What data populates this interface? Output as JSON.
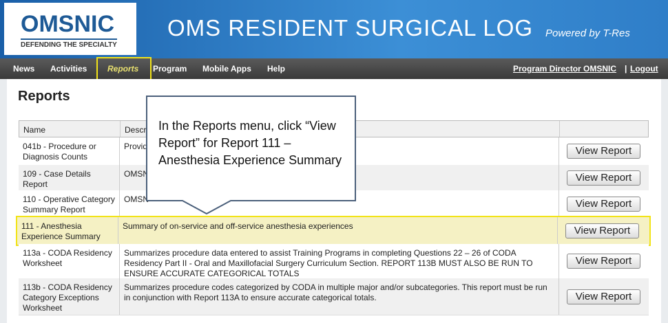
{
  "header": {
    "logo_title": "OMSNIC",
    "logo_tagline": "DEFENDING THE SPECIALTY",
    "title": "OMS RESIDENT SURGICAL LOG",
    "powered": "Powered by T-Res"
  },
  "nav": {
    "items": [
      "News",
      "Activities",
      "Reports",
      "Program",
      "Mobile Apps",
      "Help"
    ],
    "user": "Program Director OMSNIC",
    "separator": "|",
    "logout": "Logout"
  },
  "page_title": "Reports",
  "table": {
    "columns": [
      "Name",
      "Descri"
    ],
    "rows": [
      [
        "041b - Procedure or Diagnosis Counts",
        "Provid",
        "View Report"
      ],
      [
        "109 - Case Details Report",
        "OMSN",
        "View Report"
      ],
      [
        "110 - Operative Category Summary Report",
        "OMSN",
        "View Report"
      ],
      [
        "111 - Anesthesia Experience Summary",
        "Summary of on-service and off-service anesthesia experiences",
        "View Report"
      ],
      [
        "113a - CODA Residency Worksheet",
        "Summarizes procedure data entered to assist Training Programs in completing Questions 22 – 26 of CODA Residency Part II - Oral and Maxillofacial Surgery Curriculum Section. REPORT 113B MUST ALSO BE RUN TO ENSURE ACCURATE CATEGORICAL TOTALS",
        "View Report"
      ],
      [
        "113b - CODA Residency Category Exceptions Worksheet",
        "Summarizes procedure codes categorized by CODA in multiple major and/or subcategories. This report must be run in conjunction with Report 113A to ensure accurate categorical totals.",
        "View Report"
      ]
    ]
  },
  "callout": "In the Reports menu, click “View Report” for Report 111 – Anesthesia Experience Summary"
}
